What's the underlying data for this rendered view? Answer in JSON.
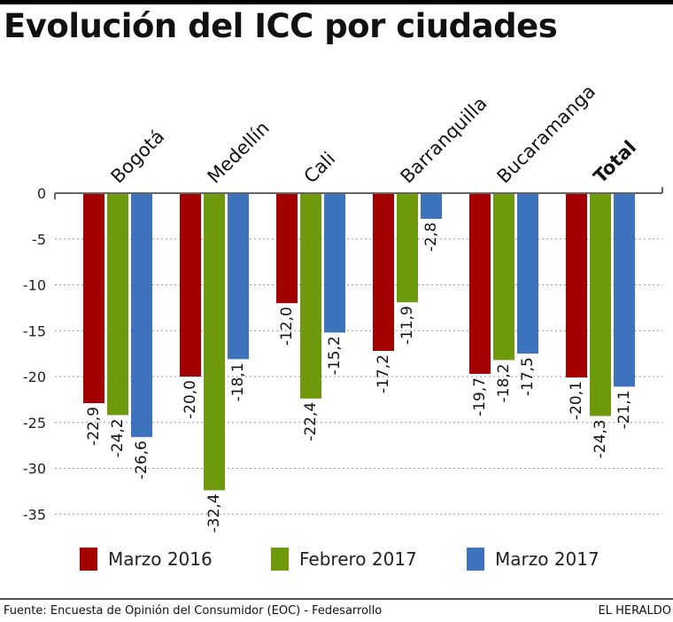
{
  "chart_data": {
    "type": "bar",
    "title": "Evolución del ICC por ciudades",
    "xlabel": "",
    "ylabel": "",
    "categories": [
      "Bogotá",
      "Medellín",
      "Cali",
      "Barranquilla",
      "Bucaramanga",
      "Total"
    ],
    "category_bold": [
      false,
      false,
      false,
      false,
      false,
      true
    ],
    "series": [
      {
        "name": "Marzo 2016",
        "color": "#a30000",
        "values": [
          -22.9,
          -20.0,
          -12.0,
          -17.2,
          -19.7,
          -20.1
        ],
        "labels": [
          "-22,9",
          "-20,0",
          "-12,0",
          "-17,2",
          "-19,7",
          "-20,1"
        ]
      },
      {
        "name": "Febrero 2017",
        "color": "#6f9a0e",
        "values": [
          -24.2,
          -32.4,
          -22.4,
          -11.9,
          -18.2,
          -24.3
        ],
        "labels": [
          "-24,2",
          "-32,4",
          "-22,4",
          "-11,9",
          "-18,2",
          "-24,3"
        ]
      },
      {
        "name": "Marzo 2017",
        "color": "#3d73bd",
        "values": [
          -26.6,
          -18.1,
          -15.2,
          -2.8,
          -17.5,
          -21.1
        ],
        "labels": [
          "-26,6",
          "-18,1",
          "-15,2",
          "-2,8",
          "-17,5",
          "-21,1"
        ]
      }
    ],
    "ylim": [
      -35,
      0
    ],
    "yticks": [
      0,
      -5,
      -10,
      -15,
      -20,
      -25,
      -30,
      -35
    ],
    "ytick_labels": [
      "0",
      "-5",
      "-10",
      "-15",
      "-20",
      "-25",
      "-30",
      "-35"
    ],
    "grid": true,
    "legend_position": "bottom"
  },
  "legend": {
    "items": [
      {
        "label": "Marzo 2016",
        "color": "#a30000"
      },
      {
        "label": "Febrero 2017",
        "color": "#6f9a0e"
      },
      {
        "label": "Marzo 2017",
        "color": "#3d73bd"
      }
    ]
  },
  "footer": {
    "source": "Fuente: Encuesta de Opinión del Consumidor (EOC) - Fedesarrollo",
    "brand": "EL HERALDO"
  }
}
